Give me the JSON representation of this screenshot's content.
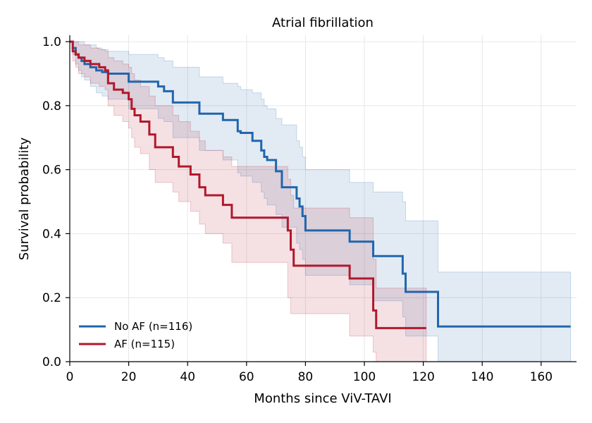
{
  "chart_data": {
    "type": "line",
    "step": true,
    "title": "Atrial fibrillation",
    "xlabel": "Months since ViV-TAVI",
    "ylabel": "Survival probability",
    "xlim": [
      0,
      172
    ],
    "ylim": [
      0,
      1.02
    ],
    "xticks": [
      0,
      20,
      40,
      60,
      80,
      100,
      120,
      140,
      160
    ],
    "yticks": [
      0.0,
      0.2,
      0.4,
      0.6,
      0.8,
      1.0
    ],
    "xtick_labels": [
      "0",
      "20",
      "40",
      "60",
      "80",
      "100",
      "120",
      "140",
      "160"
    ],
    "ytick_labels": [
      "0.0",
      "0.2",
      "0.4",
      "0.6",
      "0.8",
      "1.0"
    ],
    "grid": true,
    "legend_position": "bottom-left",
    "series": [
      {
        "name": "No AF (n=116)",
        "color": "#2166ac",
        "x": [
          0,
          1,
          2,
          3,
          4,
          5,
          7,
          9,
          11,
          13,
          20,
          30,
          32,
          35,
          44,
          52,
          57,
          58,
          62,
          65,
          66,
          67,
          70,
          72,
          77,
          78,
          79,
          80,
          95,
          103,
          113,
          114,
          125,
          170
        ],
        "y": [
          1.0,
          0.98,
          0.96,
          0.95,
          0.94,
          0.93,
          0.92,
          0.91,
          0.905,
          0.9,
          0.875,
          0.86,
          0.845,
          0.81,
          0.775,
          0.755,
          0.72,
          0.715,
          0.69,
          0.66,
          0.64,
          0.63,
          0.595,
          0.545,
          0.51,
          0.485,
          0.455,
          0.41,
          0.375,
          0.33,
          0.275,
          0.218,
          0.11,
          0.11
        ],
        "ci_upper": [
          1.0,
          1.0,
          1.0,
          1.0,
          1.0,
          0.99,
          0.99,
          0.98,
          0.975,
          0.97,
          0.96,
          0.95,
          0.94,
          0.92,
          0.89,
          0.87,
          0.86,
          0.85,
          0.84,
          0.82,
          0.8,
          0.79,
          0.76,
          0.74,
          0.69,
          0.67,
          0.64,
          0.6,
          0.56,
          0.53,
          0.5,
          0.44,
          0.28,
          0.28
        ],
        "ci_lower": [
          1.0,
          0.96,
          0.93,
          0.91,
          0.89,
          0.88,
          0.86,
          0.84,
          0.83,
          0.82,
          0.79,
          0.76,
          0.75,
          0.7,
          0.66,
          0.63,
          0.59,
          0.58,
          0.56,
          0.53,
          0.51,
          0.49,
          0.46,
          0.42,
          0.37,
          0.35,
          0.32,
          0.27,
          0.24,
          0.19,
          0.14,
          0.08,
          0.0,
          0.0
        ]
      },
      {
        "name": "AF (n=115)",
        "color": "#b2182b",
        "x": [
          0,
          1,
          2,
          3,
          5,
          7,
          10,
          12,
          13,
          15,
          18,
          20,
          21,
          22,
          24,
          27,
          29,
          35,
          37,
          41,
          44,
          46,
          52,
          55,
          74,
          75,
          76,
          95,
          103,
          104,
          121
        ],
        "y": [
          1.0,
          0.97,
          0.96,
          0.95,
          0.94,
          0.93,
          0.92,
          0.91,
          0.87,
          0.85,
          0.84,
          0.82,
          0.79,
          0.77,
          0.75,
          0.71,
          0.67,
          0.64,
          0.61,
          0.585,
          0.545,
          0.52,
          0.49,
          0.45,
          0.41,
          0.35,
          0.3,
          0.26,
          0.16,
          0.105,
          0.105
        ],
        "ci_upper": [
          1.0,
          1.0,
          1.0,
          0.99,
          0.99,
          0.98,
          0.975,
          0.97,
          0.95,
          0.94,
          0.93,
          0.92,
          0.9,
          0.88,
          0.86,
          0.83,
          0.8,
          0.77,
          0.75,
          0.72,
          0.69,
          0.66,
          0.64,
          0.61,
          0.57,
          0.52,
          0.48,
          0.45,
          0.32,
          0.23,
          0.23
        ],
        "ci_lower": [
          1.0,
          0.94,
          0.92,
          0.9,
          0.89,
          0.87,
          0.86,
          0.85,
          0.8,
          0.77,
          0.75,
          0.73,
          0.7,
          0.67,
          0.65,
          0.6,
          0.56,
          0.53,
          0.5,
          0.47,
          0.43,
          0.4,
          0.37,
          0.31,
          0.2,
          0.15,
          0.15,
          0.08,
          0.03,
          0.0,
          0.0
        ]
      }
    ]
  }
}
